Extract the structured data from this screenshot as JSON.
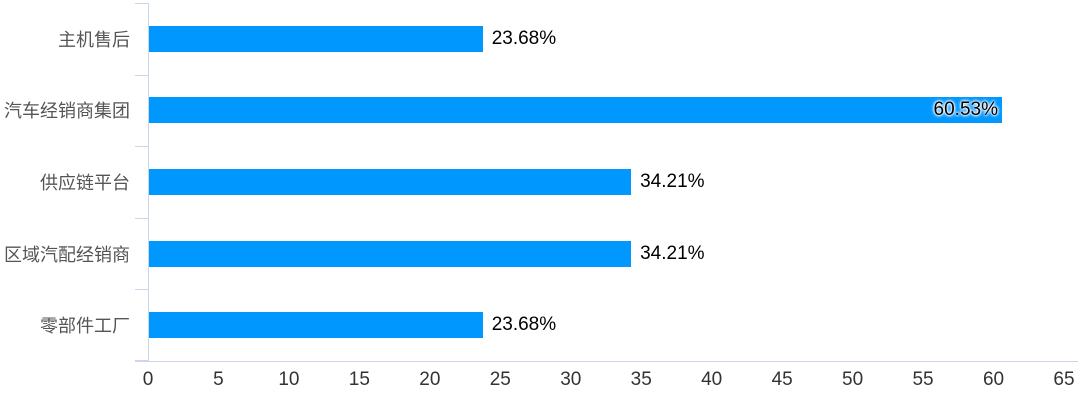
{
  "chart_data": {
    "type": "bar",
    "orientation": "horizontal",
    "title": "",
    "xlabel": "",
    "ylabel": "",
    "categories": [
      "主机售后",
      "汽车经销商集团",
      "供应链平台",
      "区域汽配经销商",
      "零部件工厂"
    ],
    "values": [
      23.68,
      60.53,
      34.21,
      34.21,
      23.68
    ],
    "value_labels": [
      "23.68%",
      "60.53%",
      "34.21%",
      "34.21%",
      "23.68%"
    ],
    "value_label_inside": [
      false,
      true,
      false,
      false,
      false
    ],
    "x_ticks": [
      "0",
      "5",
      "10",
      "15",
      "20",
      "25",
      "30",
      "35",
      "40",
      "45",
      "50",
      "55",
      "60",
      "65"
    ],
    "xlim": [
      0,
      65
    ],
    "grid": false,
    "legend": false,
    "colors": {
      "bar": "#0098ff",
      "axis_line": "#ccd6eb",
      "category_label": "#555555",
      "tick_label": "#333333",
      "value_label": "#000000"
    }
  }
}
